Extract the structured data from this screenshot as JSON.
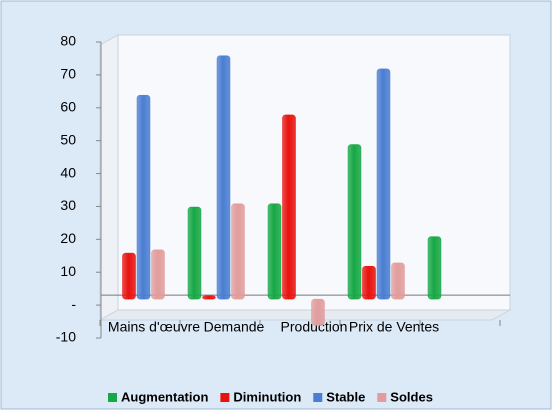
{
  "chart_data": {
    "type": "bar",
    "categories": [
      "Mains d'œuvre",
      "Demande",
      "Production",
      "Prix de Ventes",
      null
    ],
    "series": [
      {
        "name": "Augmentation",
        "color": "#17a845",
        "values": [
          0,
          28,
          29,
          47,
          19
        ]
      },
      {
        "name": "Diminution",
        "color": "#e8120e",
        "values": [
          14,
          1,
          56,
          10,
          null
        ]
      },
      {
        "name": "Stable",
        "color": "#4a7ed2",
        "values": [
          62,
          74,
          0,
          70,
          null
        ]
      },
      {
        "name": "Soldes",
        "color": "#e29c9c",
        "values": [
          15,
          29,
          -8,
          11,
          null
        ]
      }
    ],
    "ylim": [
      -10,
      80
    ],
    "yticks": [
      -10,
      {
        "value": 0,
        "label": "-"
      },
      10,
      20,
      30,
      40,
      50,
      60,
      70,
      80
    ],
    "legend": "bottom"
  }
}
